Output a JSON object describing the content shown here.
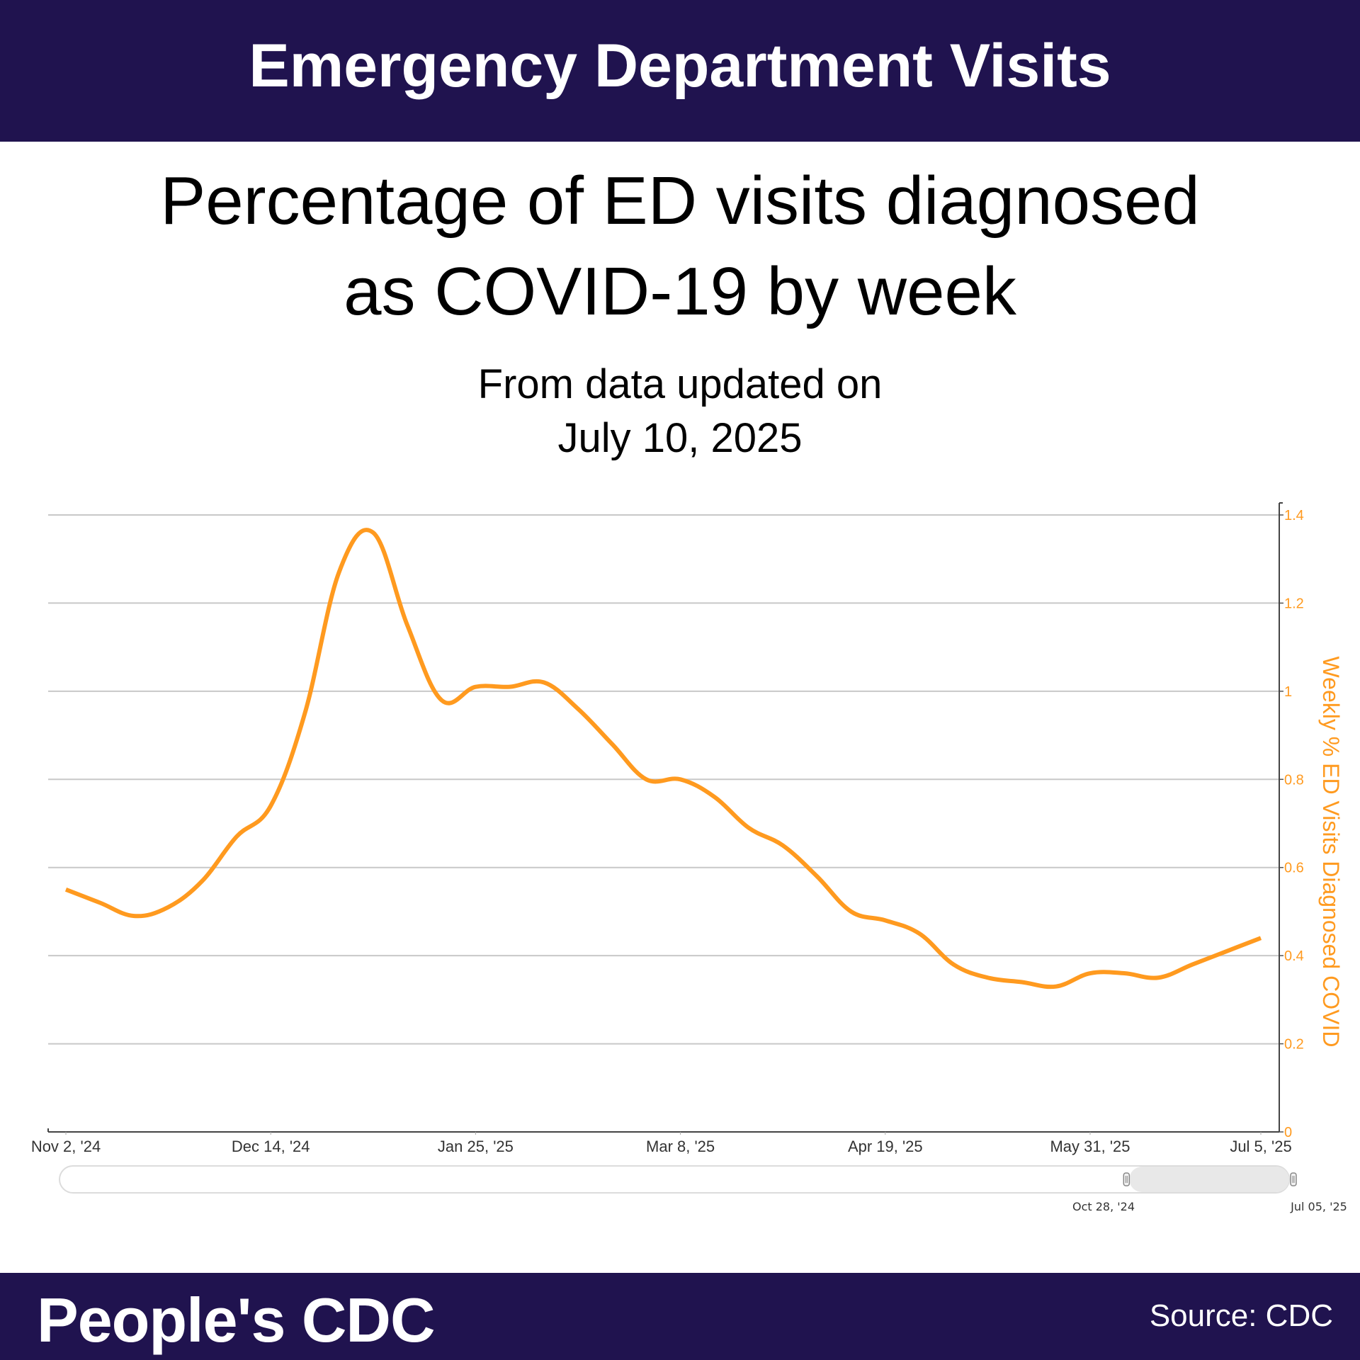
{
  "header": {
    "title": "Emergency Department Visits"
  },
  "titles": {
    "line1": "Percentage of ED visits diagnosed",
    "line2": "as COVID-19 by week",
    "updated_line1": "From data updated on",
    "updated_line2": "July 10, 2025"
  },
  "footer": {
    "brand": "People's CDC",
    "source": "Source: CDC"
  },
  "colors": {
    "brand_bg": "#20134f",
    "series": "#ff9a1f",
    "axis_label": "#ff9a1f"
  },
  "navigator": {
    "start_label": "Oct 28, '24",
    "end_label": "Jul 05, '25",
    "selected_range_fraction": [
      0.87,
      1.0
    ]
  },
  "chart_data": {
    "type": "line",
    "title": "Percentage of ED visits diagnosed as COVID-19 by week",
    "subtitle": "From data updated on July 10, 2025",
    "xlabel": "",
    "ylabel": "Weekly % ED Visits Diagnosed COVID",
    "y_axis_side": "right",
    "ylim": [
      0,
      1.4
    ],
    "y_ticks": [
      "0",
      "0.2",
      "0.4",
      "0.6",
      "0.8",
      "1",
      "1.2",
      "1.4"
    ],
    "y_tick_values": [
      0,
      0.2,
      0.4,
      0.6,
      0.8,
      1.0,
      1.2,
      1.4
    ],
    "x_tick_labels": [
      "Nov 2, '24",
      "Dec 14, '24",
      "Jan 25, '25",
      "Mar 8, '25",
      "Apr 19, '25",
      "May 31, '25",
      "Jul 5, '25"
    ],
    "x_tick_week_index": [
      0,
      6,
      12,
      18,
      24,
      30,
      35
    ],
    "grid": true,
    "legend": "none",
    "series": [
      {
        "name": "Weekly % ED Visits Diagnosed COVID",
        "x": [
          "Nov 2, '24",
          "Nov 9, '24",
          "Nov 16, '24",
          "Nov 23, '24",
          "Nov 30, '24",
          "Dec 7, '24",
          "Dec 14, '24",
          "Dec 21, '24",
          "Dec 28, '24",
          "Jan 4, '25",
          "Jan 11, '25",
          "Jan 18, '25",
          "Jan 25, '25",
          "Feb 1, '25",
          "Feb 8, '25",
          "Feb 15, '25",
          "Feb 22, '25",
          "Mar 1, '25",
          "Mar 8, '25",
          "Mar 15, '25",
          "Mar 22, '25",
          "Mar 29, '25",
          "Apr 5, '25",
          "Apr 12, '25",
          "Apr 19, '25",
          "Apr 26, '25",
          "May 3, '25",
          "May 10, '25",
          "May 17, '25",
          "May 24, '25",
          "May 31, '25",
          "Jun 7, '25",
          "Jun 14, '25",
          "Jun 21, '25",
          "Jun 28, '25",
          "Jul 5, '25"
        ],
        "values": [
          0.55,
          0.52,
          0.49,
          0.51,
          0.57,
          0.67,
          0.74,
          0.95,
          1.27,
          1.36,
          1.15,
          0.98,
          1.01,
          1.01,
          1.02,
          0.96,
          0.88,
          0.8,
          0.8,
          0.76,
          0.69,
          0.65,
          0.58,
          0.5,
          0.48,
          0.45,
          0.38,
          0.35,
          0.34,
          0.33,
          0.36,
          0.36,
          0.35,
          0.38,
          0.41,
          0.44
        ]
      }
    ]
  }
}
